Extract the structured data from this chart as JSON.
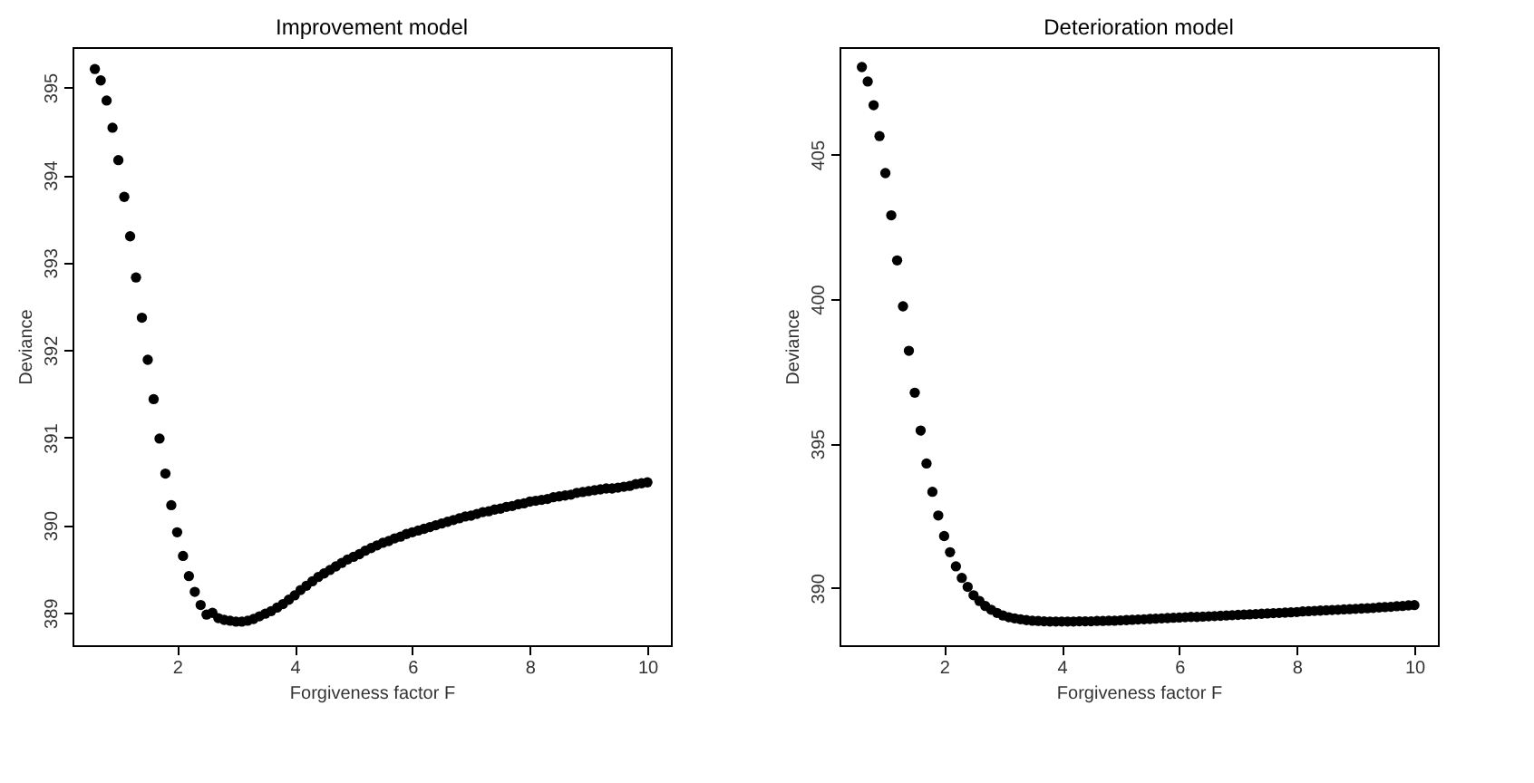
{
  "chart_data": [
    {
      "type": "scatter",
      "title": "Improvement model",
      "xlabel": "Forgiveness factor F",
      "ylabel": "Deviance",
      "marker": "circle",
      "xlim": [
        0.22,
        10.4
      ],
      "ylim": [
        388.63,
        395.46
      ],
      "xticks": [
        2,
        4,
        6,
        8,
        10
      ],
      "yticks": [
        389,
        390,
        391,
        392,
        393,
        394,
        395
      ],
      "x": [
        0.6,
        0.7,
        0.8,
        0.9,
        1.0,
        1.1,
        1.2,
        1.3,
        1.4,
        1.5,
        1.6,
        1.7,
        1.8,
        1.9,
        2.0,
        2.1,
        2.2,
        2.3,
        2.4,
        2.5,
        2.6,
        2.7,
        2.8,
        2.9,
        3.0,
        3.1,
        3.2,
        3.3,
        3.4,
        3.5,
        3.6,
        3.7,
        3.8,
        3.9,
        4.0,
        4.1,
        4.2,
        4.3,
        4.4,
        4.5,
        4.6,
        4.7,
        4.8,
        4.9,
        5.0,
        5.1,
        5.2,
        5.3,
        5.4,
        5.5,
        5.6,
        5.7,
        5.8,
        5.9,
        6.0,
        6.1,
        6.2,
        6.3,
        6.4,
        6.5,
        6.6,
        6.7,
        6.8,
        6.9,
        7.0,
        7.1,
        7.2,
        7.3,
        7.4,
        7.5,
        7.6,
        7.7,
        7.8,
        7.9,
        8.0,
        8.1,
        8.2,
        8.3,
        8.4,
        8.5,
        8.6,
        8.7,
        8.8,
        8.9,
        9.0,
        9.1,
        9.2,
        9.3,
        9.4,
        9.5,
        9.6,
        9.7,
        9.8,
        9.9,
        10.0
      ],
      "series": [
        {
          "color": "#000000",
          "values": [
            395.21,
            395.08,
            394.85,
            394.54,
            394.17,
            393.75,
            393.3,
            392.83,
            392.37,
            391.89,
            391.44,
            390.99,
            390.59,
            390.23,
            389.92,
            389.65,
            389.42,
            389.24,
            389.09,
            388.98,
            389.0,
            388.94,
            388.92,
            388.91,
            388.9,
            388.9,
            388.91,
            388.93,
            388.96,
            388.99,
            389.02,
            389.06,
            389.1,
            389.15,
            389.2,
            389.26,
            389.31,
            389.36,
            389.41,
            389.45,
            389.49,
            389.53,
            389.57,
            389.61,
            389.64,
            389.67,
            389.71,
            389.74,
            389.77,
            389.8,
            389.82,
            389.85,
            389.87,
            389.9,
            389.92,
            389.94,
            389.96,
            389.98,
            390.0,
            390.02,
            390.04,
            390.06,
            390.08,
            390.1,
            390.11,
            390.13,
            390.15,
            390.16,
            390.18,
            390.19,
            390.21,
            390.22,
            390.24,
            390.25,
            390.27,
            390.28,
            390.29,
            390.3,
            390.32,
            390.33,
            390.34,
            390.35,
            390.37,
            390.38,
            390.39,
            390.4,
            390.41,
            390.42,
            390.42,
            390.43,
            390.44,
            390.45,
            390.47,
            390.48,
            390.49
          ]
        }
      ]
    },
    {
      "type": "scatter",
      "title": "Deterioration model",
      "xlabel": "Forgiveness factor F",
      "ylabel": "Deviance",
      "marker": "circle",
      "xlim": [
        0.22,
        10.4
      ],
      "ylim": [
        388.02,
        408.72
      ],
      "xticks": [
        2,
        4,
        6,
        8,
        10
      ],
      "yticks": [
        390,
        395,
        400,
        405
      ],
      "x": [
        0.6,
        0.7,
        0.8,
        0.9,
        1.0,
        1.1,
        1.2,
        1.3,
        1.4,
        1.5,
        1.6,
        1.7,
        1.8,
        1.9,
        2.0,
        2.1,
        2.2,
        2.3,
        2.4,
        2.5,
        2.6,
        2.7,
        2.8,
        2.9,
        3.0,
        3.1,
        3.2,
        3.3,
        3.4,
        3.5,
        3.6,
        3.7,
        3.8,
        3.9,
        4.0,
        4.1,
        4.2,
        4.3,
        4.4,
        4.5,
        4.6,
        4.7,
        4.8,
        4.9,
        5.0,
        5.1,
        5.2,
        5.3,
        5.4,
        5.5,
        5.6,
        5.7,
        5.8,
        5.9,
        6.0,
        6.1,
        6.2,
        6.3,
        6.4,
        6.5,
        6.6,
        6.7,
        6.8,
        6.9,
        7.0,
        7.1,
        7.2,
        7.3,
        7.4,
        7.5,
        7.6,
        7.7,
        7.8,
        7.9,
        8.0,
        8.1,
        8.2,
        8.3,
        8.4,
        8.5,
        8.6,
        8.7,
        8.8,
        8.9,
        9.0,
        9.1,
        9.2,
        9.3,
        9.4,
        9.5,
        9.6,
        9.7,
        9.8,
        9.9,
        10.0
      ],
      "series": [
        {
          "color": "#000000",
          "values": [
            408.03,
            407.53,
            406.71,
            405.64,
            404.36,
            402.9,
            401.34,
            399.75,
            398.21,
            396.76,
            395.45,
            394.31,
            393.33,
            392.51,
            391.8,
            391.24,
            390.75,
            390.35,
            390.04,
            389.75,
            389.55,
            389.38,
            389.25,
            389.14,
            389.05,
            388.99,
            388.95,
            388.92,
            388.89,
            388.87,
            388.86,
            388.85,
            388.84,
            388.84,
            388.84,
            388.84,
            388.84,
            388.85,
            388.85,
            388.85,
            388.86,
            388.86,
            388.87,
            388.87,
            388.88,
            388.89,
            388.9,
            388.91,
            388.92,
            388.93,
            388.94,
            388.95,
            388.96,
            388.97,
            388.98,
            388.99,
            389.0,
            389.0,
            389.01,
            389.02,
            389.03,
            389.04,
            389.05,
            389.06,
            389.07,
            389.08,
            389.09,
            389.1,
            389.11,
            389.12,
            389.13,
            389.14,
            389.15,
            389.16,
            389.17,
            389.19,
            389.2,
            389.21,
            389.22,
            389.23,
            389.24,
            389.25,
            389.26,
            389.27,
            389.28,
            389.29,
            389.3,
            389.31,
            389.33,
            389.34,
            389.35,
            389.37,
            389.38,
            389.4,
            389.41
          ]
        }
      ]
    }
  ]
}
